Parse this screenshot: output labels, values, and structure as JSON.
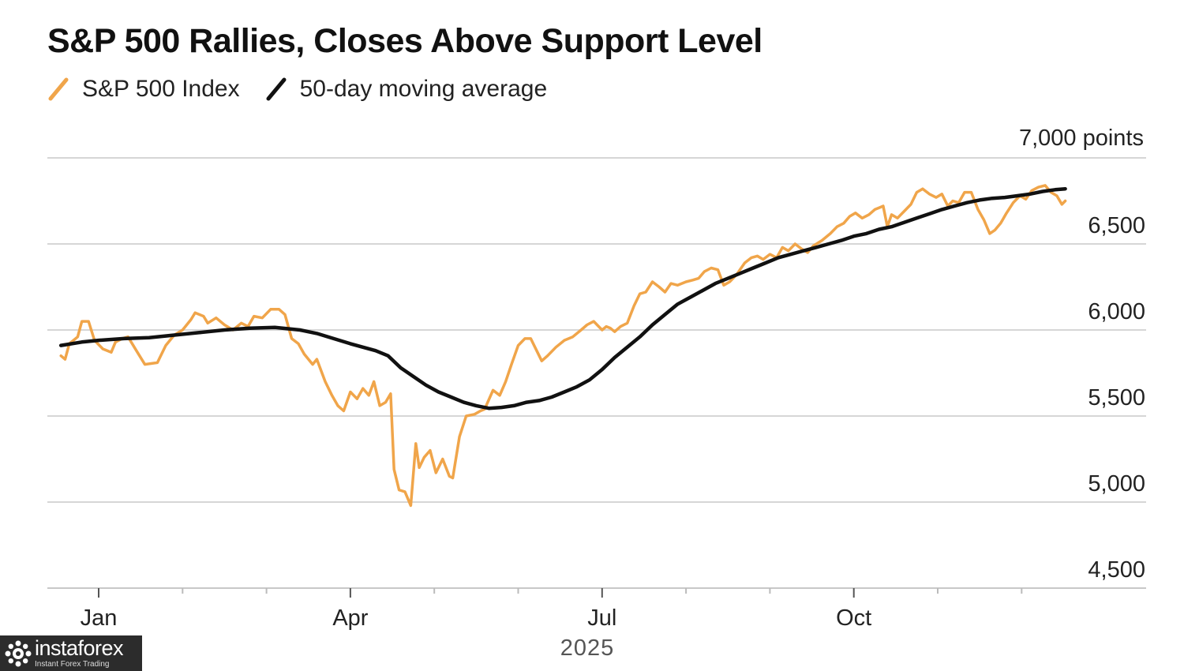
{
  "title": "S&P 500 Rallies, Closes Above Support Level",
  "legend": [
    {
      "label": "S&P 500 Index",
      "color": "#f0a54a"
    },
    {
      "label": "50-day moving average",
      "color": "#111111"
    }
  ],
  "watermark": {
    "name": "instaforex",
    "tagline": "Instant Forex Trading"
  },
  "chart_data": {
    "type": "line",
    "title": "S&P 500 Rallies, Closes Above Support Level",
    "ylabel": "7,000 points",
    "xlabel": "2025",
    "ylim": [
      4500,
      7000
    ],
    "yticks": [
      4500,
      5000,
      5500,
      6000,
      6500
    ],
    "ytick_labels": [
      "4,500",
      "5,000",
      "5,500",
      "6,000",
      "6,500"
    ],
    "x_unit": "month index (0 = Jan 1, 2025)",
    "xlim": [
      -0.2,
      12.05
    ],
    "month_ticks": [
      0,
      1,
      2,
      3,
      4,
      5,
      6,
      7,
      8,
      9,
      10,
      11
    ],
    "x_labels": [
      {
        "x": 0,
        "label": "Jan"
      },
      {
        "x": 3,
        "label": "Apr"
      },
      {
        "x": 6,
        "label": "Jul"
      },
      {
        "x": 9,
        "label": "Oct"
      }
    ],
    "series": [
      {
        "name": "S&P 500 Index",
        "color": "#f0a54a",
        "points": [
          [
            -0.45,
            5850
          ],
          [
            -0.4,
            5830
          ],
          [
            -0.35,
            5920
          ],
          [
            -0.3,
            5940
          ],
          [
            -0.25,
            5960
          ],
          [
            -0.2,
            6050
          ],
          [
            -0.12,
            6050
          ],
          [
            -0.05,
            5940
          ],
          [
            0.05,
            5890
          ],
          [
            0.15,
            5870
          ],
          [
            0.2,
            5930
          ],
          [
            0.28,
            5950
          ],
          [
            0.35,
            5960
          ],
          [
            0.45,
            5880
          ],
          [
            0.55,
            5800
          ],
          [
            0.7,
            5810
          ],
          [
            0.8,
            5910
          ],
          [
            0.9,
            5970
          ],
          [
            1.0,
            6000
          ],
          [
            1.1,
            6060
          ],
          [
            1.15,
            6100
          ],
          [
            1.25,
            6080
          ],
          [
            1.3,
            6040
          ],
          [
            1.4,
            6070
          ],
          [
            1.5,
            6030
          ],
          [
            1.6,
            6000
          ],
          [
            1.7,
            6040
          ],
          [
            1.78,
            6020
          ],
          [
            1.85,
            6080
          ],
          [
            1.95,
            6070
          ],
          [
            2.05,
            6120
          ],
          [
            2.15,
            6120
          ],
          [
            2.22,
            6090
          ],
          [
            2.3,
            5950
          ],
          [
            2.38,
            5920
          ],
          [
            2.45,
            5860
          ],
          [
            2.55,
            5800
          ],
          [
            2.6,
            5830
          ],
          [
            2.7,
            5700
          ],
          [
            2.78,
            5620
          ],
          [
            2.85,
            5560
          ],
          [
            2.92,
            5530
          ],
          [
            3.0,
            5640
          ],
          [
            3.08,
            5600
          ],
          [
            3.15,
            5660
          ],
          [
            3.22,
            5620
          ],
          [
            3.28,
            5700
          ],
          [
            3.35,
            5560
          ],
          [
            3.42,
            5580
          ],
          [
            3.48,
            5630
          ],
          [
            3.52,
            5190
          ],
          [
            3.58,
            5070
          ],
          [
            3.65,
            5060
          ],
          [
            3.72,
            4980
          ],
          [
            3.78,
            5340
          ],
          [
            3.82,
            5200
          ],
          [
            3.88,
            5260
          ],
          [
            3.95,
            5300
          ],
          [
            4.02,
            5170
          ],
          [
            4.1,
            5250
          ],
          [
            4.18,
            5150
          ],
          [
            4.22,
            5140
          ],
          [
            4.3,
            5380
          ],
          [
            4.38,
            5500
          ],
          [
            4.48,
            5510
          ],
          [
            4.55,
            5530
          ],
          [
            4.6,
            5540
          ],
          [
            4.7,
            5650
          ],
          [
            4.78,
            5620
          ],
          [
            4.85,
            5700
          ],
          [
            4.92,
            5800
          ],
          [
            5.0,
            5910
          ],
          [
            5.08,
            5950
          ],
          [
            5.15,
            5950
          ],
          [
            5.22,
            5880
          ],
          [
            5.28,
            5820
          ],
          [
            5.35,
            5850
          ],
          [
            5.45,
            5900
          ],
          [
            5.55,
            5940
          ],
          [
            5.65,
            5960
          ],
          [
            5.75,
            6000
          ],
          [
            5.82,
            6030
          ],
          [
            5.9,
            6050
          ],
          [
            6.0,
            6000
          ],
          [
            6.05,
            6020
          ],
          [
            6.1,
            6010
          ],
          [
            6.15,
            5990
          ],
          [
            6.22,
            6020
          ],
          [
            6.3,
            6040
          ],
          [
            6.38,
            6140
          ],
          [
            6.45,
            6210
          ],
          [
            6.52,
            6220
          ],
          [
            6.6,
            6280
          ],
          [
            6.68,
            6250
          ],
          [
            6.75,
            6220
          ],
          [
            6.82,
            6270
          ],
          [
            6.9,
            6260
          ],
          [
            7.0,
            6280
          ],
          [
            7.08,
            6290
          ],
          [
            7.15,
            6300
          ],
          [
            7.22,
            6340
          ],
          [
            7.3,
            6360
          ],
          [
            7.38,
            6350
          ],
          [
            7.45,
            6260
          ],
          [
            7.52,
            6280
          ],
          [
            7.6,
            6320
          ],
          [
            7.7,
            6390
          ],
          [
            7.78,
            6420
          ],
          [
            7.85,
            6430
          ],
          [
            7.92,
            6410
          ],
          [
            8.0,
            6440
          ],
          [
            8.08,
            6420
          ],
          [
            8.15,
            6480
          ],
          [
            8.22,
            6460
          ],
          [
            8.3,
            6500
          ],
          [
            8.38,
            6470
          ],
          [
            8.45,
            6450
          ],
          [
            8.52,
            6490
          ],
          [
            8.62,
            6520
          ],
          [
            8.72,
            6560
          ],
          [
            8.8,
            6600
          ],
          [
            8.88,
            6620
          ],
          [
            8.95,
            6660
          ],
          [
            9.02,
            6680
          ],
          [
            9.1,
            6650
          ],
          [
            9.18,
            6670
          ],
          [
            9.25,
            6700
          ],
          [
            9.3,
            6710
          ],
          [
            9.35,
            6720
          ],
          [
            9.4,
            6600
          ],
          [
            9.45,
            6670
          ],
          [
            9.52,
            6650
          ],
          [
            9.6,
            6690
          ],
          [
            9.68,
            6730
          ],
          [
            9.75,
            6800
          ],
          [
            9.82,
            6820
          ],
          [
            9.9,
            6790
          ],
          [
            9.98,
            6770
          ],
          [
            10.05,
            6790
          ],
          [
            10.12,
            6720
          ],
          [
            10.18,
            6750
          ],
          [
            10.25,
            6740
          ],
          [
            10.32,
            6800
          ],
          [
            10.4,
            6800
          ],
          [
            10.48,
            6700
          ],
          [
            10.55,
            6640
          ],
          [
            10.62,
            6560
          ],
          [
            10.68,
            6580
          ],
          [
            10.75,
            6620
          ],
          [
            10.82,
            6680
          ],
          [
            10.9,
            6740
          ],
          [
            10.98,
            6780
          ],
          [
            11.05,
            6760
          ],
          [
            11.12,
            6810
          ],
          [
            11.2,
            6830
          ],
          [
            11.28,
            6840
          ],
          [
            11.35,
            6800
          ],
          [
            11.42,
            6780
          ],
          [
            11.48,
            6730
          ],
          [
            11.52,
            6750
          ]
        ]
      },
      {
        "name": "50-day moving average",
        "color": "#111111",
        "points": [
          [
            -0.45,
            5910
          ],
          [
            -0.2,
            5930
          ],
          [
            0.0,
            5940
          ],
          [
            0.3,
            5950
          ],
          [
            0.6,
            5955
          ],
          [
            0.9,
            5970
          ],
          [
            1.2,
            5985
          ],
          [
            1.5,
            6000
          ],
          [
            1.8,
            6010
          ],
          [
            2.1,
            6015
          ],
          [
            2.4,
            6000
          ],
          [
            2.6,
            5980
          ],
          [
            2.8,
            5950
          ],
          [
            3.0,
            5920
          ],
          [
            3.15,
            5900
          ],
          [
            3.3,
            5880
          ],
          [
            3.45,
            5850
          ],
          [
            3.6,
            5780
          ],
          [
            3.75,
            5730
          ],
          [
            3.9,
            5680
          ],
          [
            4.05,
            5640
          ],
          [
            4.2,
            5610
          ],
          [
            4.35,
            5580
          ],
          [
            4.5,
            5560
          ],
          [
            4.65,
            5545
          ],
          [
            4.8,
            5550
          ],
          [
            4.95,
            5560
          ],
          [
            5.1,
            5580
          ],
          [
            5.25,
            5590
          ],
          [
            5.4,
            5610
          ],
          [
            5.55,
            5640
          ],
          [
            5.7,
            5670
          ],
          [
            5.85,
            5710
          ],
          [
            6.0,
            5770
          ],
          [
            6.15,
            5840
          ],
          [
            6.3,
            5900
          ],
          [
            6.45,
            5960
          ],
          [
            6.6,
            6030
          ],
          [
            6.75,
            6090
          ],
          [
            6.9,
            6150
          ],
          [
            7.05,
            6190
          ],
          [
            7.2,
            6230
          ],
          [
            7.35,
            6270
          ],
          [
            7.5,
            6300
          ],
          [
            7.65,
            6330
          ],
          [
            7.8,
            6360
          ],
          [
            7.95,
            6390
          ],
          [
            8.1,
            6420
          ],
          [
            8.25,
            6440
          ],
          [
            8.4,
            6460
          ],
          [
            8.55,
            6480
          ],
          [
            8.7,
            6500
          ],
          [
            8.85,
            6520
          ],
          [
            9.0,
            6545
          ],
          [
            9.15,
            6560
          ],
          [
            9.3,
            6585
          ],
          [
            9.45,
            6600
          ],
          [
            9.6,
            6625
          ],
          [
            9.75,
            6650
          ],
          [
            9.9,
            6675
          ],
          [
            10.05,
            6700
          ],
          [
            10.2,
            6720
          ],
          [
            10.35,
            6740
          ],
          [
            10.5,
            6755
          ],
          [
            10.65,
            6765
          ],
          [
            10.8,
            6770
          ],
          [
            10.95,
            6780
          ],
          [
            11.1,
            6790
          ],
          [
            11.25,
            6805
          ],
          [
            11.4,
            6815
          ],
          [
            11.52,
            6820
          ]
        ]
      }
    ]
  }
}
